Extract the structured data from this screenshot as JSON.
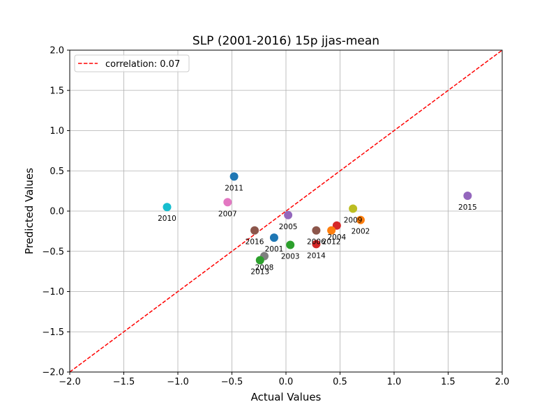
{
  "chart_data": {
    "type": "scatter",
    "title": "SLP (2001-2016) 15p jjas-mean",
    "xlabel": "Actual Values",
    "ylabel": "Predicted Values",
    "xlim": [
      -2.0,
      2.0
    ],
    "ylim": [
      -2.0,
      2.0
    ],
    "xticks": [
      "−2.0",
      "−1.5",
      "−1.0",
      "−0.5",
      "0.0",
      "0.5",
      "1.0",
      "1.5",
      "2.0"
    ],
    "yticks": [
      "−2.0",
      "−1.5",
      "−1.0",
      "−0.5",
      "0.0",
      "0.5",
      "1.0",
      "1.5",
      "2.0"
    ],
    "grid": true,
    "legend": {
      "placement": "top-left",
      "label": "correlation: 0.07",
      "color": "#ff0000",
      "style": "dashed"
    },
    "reference_line": {
      "x": [
        -2.0,
        2.0
      ],
      "y": [
        -2.0,
        2.0
      ],
      "color": "#ff0000"
    },
    "points": [
      {
        "label": "2001",
        "x": -0.11,
        "y": -0.33,
        "color": "#1f77b4"
      },
      {
        "label": "2002",
        "x": 0.69,
        "y": -0.11,
        "color": "#ff7f0e"
      },
      {
        "label": "2003",
        "x": 0.04,
        "y": -0.42,
        "color": "#2ca02c"
      },
      {
        "label": "2004",
        "x": 0.47,
        "y": -0.18,
        "color": "#d62728"
      },
      {
        "label": "2005",
        "x": 0.02,
        "y": -0.05,
        "color": "#9467bd"
      },
      {
        "label": "2006",
        "x": 0.28,
        "y": -0.24,
        "color": "#8c564b"
      },
      {
        "label": "2007",
        "x": -0.54,
        "y": 0.11,
        "color": "#e377c2"
      },
      {
        "label": "2008",
        "x": -0.2,
        "y": -0.56,
        "color": "#7f7f7f"
      },
      {
        "label": "2009",
        "x": 0.62,
        "y": 0.03,
        "color": "#bcbd22"
      },
      {
        "label": "2010",
        "x": -1.1,
        "y": 0.05,
        "color": "#17becf"
      },
      {
        "label": "2011",
        "x": -0.48,
        "y": 0.43,
        "color": "#1f77b4"
      },
      {
        "label": "2012",
        "x": 0.42,
        "y": -0.24,
        "color": "#ff7f0e"
      },
      {
        "label": "2013",
        "x": -0.24,
        "y": -0.61,
        "color": "#2ca02c"
      },
      {
        "label": "2014",
        "x": 0.28,
        "y": -0.41,
        "color": "#d62728"
      },
      {
        "label": "2015",
        "x": 1.68,
        "y": 0.19,
        "color": "#9467bd"
      },
      {
        "label": "2016",
        "x": -0.29,
        "y": -0.24,
        "color": "#8c564b"
      }
    ]
  }
}
